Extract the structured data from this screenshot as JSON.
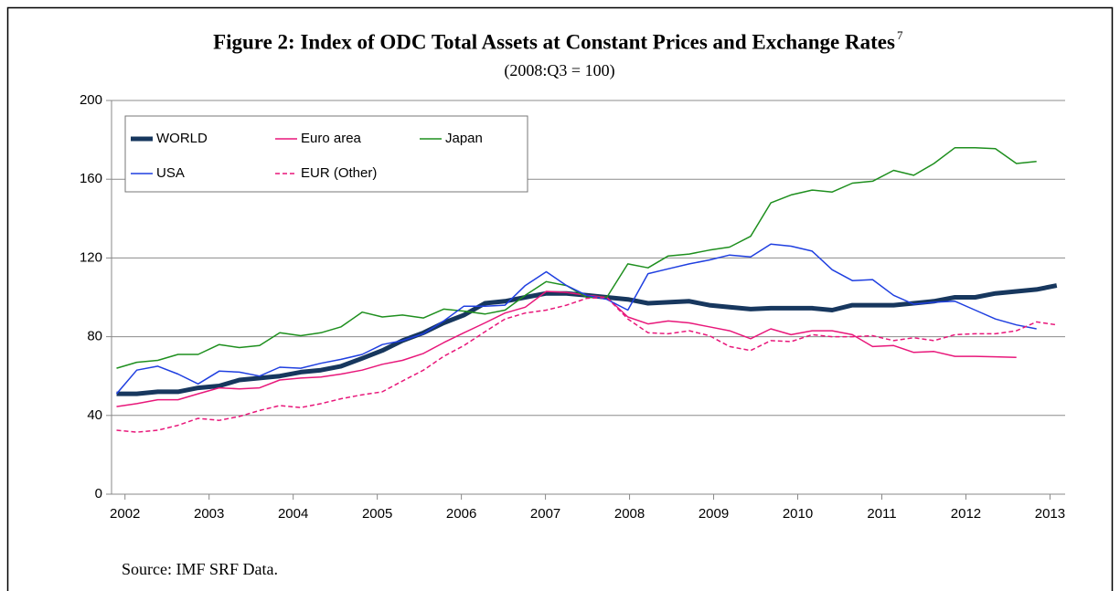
{
  "chart_data": {
    "type": "line",
    "title": "Figure 2: Index of ODC Total Assets at Constant Prices and Exchange Rates",
    "title_note": "7",
    "subtitle": "(2008:Q3 = 100)",
    "source": "Source: IMF SRF Data.",
    "x": [
      2001.9,
      2002.14,
      2002.39,
      2002.63,
      2002.87,
      2003.12,
      2003.36,
      2003.6,
      2003.84,
      2004.09,
      2004.33,
      2004.57,
      2004.82,
      2005.06,
      2005.3,
      2005.55,
      2005.79,
      2006.03,
      2006.28,
      2006.52,
      2006.76,
      2007.01,
      2007.25,
      2007.49,
      2007.73,
      2007.98,
      2008.22,
      2008.46,
      2008.71,
      2008.95,
      2009.19,
      2009.44,
      2009.68,
      2009.92,
      2010.17,
      2010.41,
      2010.65,
      2010.89,
      2011.14,
      2011.38,
      2011.62,
      2011.87,
      2012.11,
      2012.35,
      2012.6,
      2012.84,
      2013.08
    ],
    "series": [
      {
        "name": "WORLD",
        "color": "#17375e",
        "linewidth": 5,
        "style": "solid",
        "values": [
          51,
          51,
          52,
          52,
          54,
          55,
          58,
          59,
          60,
          62,
          63,
          65,
          69,
          73,
          78,
          82,
          87,
          91,
          97,
          98,
          100,
          102,
          102,
          101,
          100,
          99,
          97,
          97.5,
          98,
          96,
          95,
          94,
          94.5,
          94.5,
          94.5,
          93.5,
          96,
          96,
          96,
          97,
          98,
          100,
          100,
          102,
          103,
          104,
          106
        ]
      },
      {
        "name": "Euro area",
        "color": "#e8177a",
        "linewidth": 1.5,
        "style": "solid",
        "values": [
          44.5,
          46,
          48,
          48,
          51,
          54,
          53.5,
          54,
          58,
          59,
          59.5,
          61,
          63,
          66,
          68,
          71.5,
          77,
          82,
          87,
          92,
          95,
          103,
          102.5,
          101,
          100,
          90,
          86.5,
          88,
          87,
          85,
          83,
          79,
          84,
          81,
          83,
          83,
          81,
          75,
          75.5,
          72,
          72.5,
          70,
          70,
          69.8,
          69.5,
          null,
          null
        ]
      },
      {
        "name": "Japan",
        "color": "#1e8f1e",
        "linewidth": 1.5,
        "style": "solid",
        "values": [
          64,
          67,
          68,
          71,
          71,
          76,
          74.5,
          75.5,
          82,
          80.5,
          82,
          85,
          92.5,
          90,
          91,
          89.5,
          94,
          93,
          91.5,
          93.5,
          101,
          108,
          106,
          100,
          100,
          117,
          115,
          121,
          122,
          124,
          125.5,
          131,
          148,
          152,
          154.5,
          153.5,
          158,
          159,
          164.5,
          162,
          168,
          176,
          176,
          175.5,
          168,
          169,
          null
        ]
      },
      {
        "name": "USA",
        "color": "#1f3fe0",
        "linewidth": 1.5,
        "style": "solid",
        "values": [
          51,
          63,
          65,
          61,
          56,
          62.5,
          62,
          60,
          64.5,
          64,
          66.5,
          68.5,
          71,
          76,
          78,
          81.5,
          88,
          95.5,
          95.5,
          96,
          106,
          113,
          106,
          101,
          99,
          93.5,
          112,
          114.5,
          117,
          119,
          121.5,
          120.5,
          127,
          126,
          123.5,
          114,
          108.5,
          109,
          101,
          96.5,
          97.5,
          98,
          93.5,
          89,
          86,
          84,
          null
        ]
      },
      {
        "name": "EUR (Other)",
        "color": "#e8177a",
        "linewidth": 1.5,
        "style": "dashed",
        "values": [
          32.5,
          31.5,
          32.5,
          35,
          38.5,
          37.5,
          39.5,
          42.5,
          45,
          44,
          46,
          48.5,
          50.5,
          52,
          57.5,
          63,
          70,
          75.5,
          82.5,
          89,
          92,
          93.5,
          96,
          99.5,
          100,
          89,
          82,
          81.5,
          83,
          80.5,
          75,
          73,
          78,
          77.5,
          81,
          80,
          80,
          80.5,
          78,
          79.5,
          78,
          81,
          81.5,
          81.5,
          83,
          87.5,
          86
        ]
      }
    ],
    "xlim": [
      2001.84,
      2013.18
    ],
    "xticks": [
      2002,
      2003,
      2004,
      2005,
      2006,
      2007,
      2008,
      2009,
      2010,
      2011,
      2012,
      2013
    ],
    "ylim": [
      0,
      200
    ],
    "yticks": [
      0,
      40,
      80,
      120,
      160,
      200
    ],
    "grid": true,
    "legend": "upper left"
  }
}
